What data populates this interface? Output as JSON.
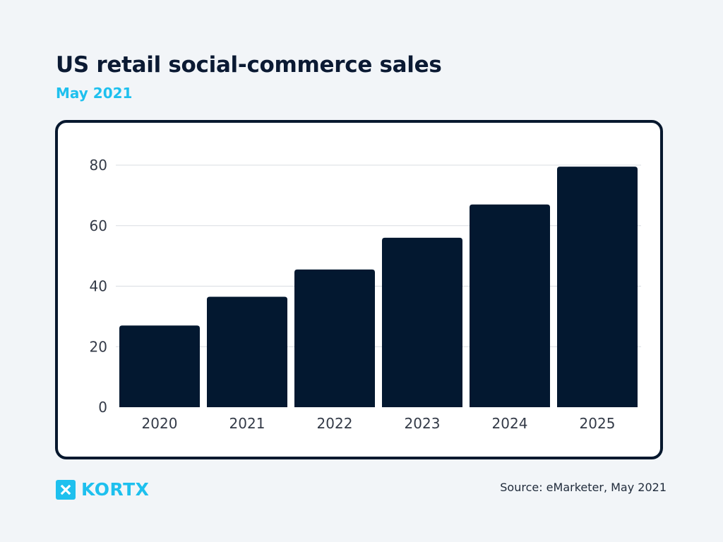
{
  "header": {
    "title": "US retail social-commerce sales",
    "subtitle": "May 2021"
  },
  "footer": {
    "brand": "KORTX",
    "source": "Source: eMarketer, May 2021"
  },
  "colors": {
    "bar": "#031830",
    "accent": "#1ec0ee",
    "grid": "#d9dde2"
  },
  "chart_data": {
    "type": "bar",
    "categories": [
      "2020",
      "2021",
      "2022",
      "2023",
      "2024",
      "2025"
    ],
    "values": [
      27,
      36.5,
      45.5,
      56,
      67,
      79.5
    ],
    "title": "US retail social-commerce sales",
    "subtitle": "May 2021",
    "xlabel": "",
    "ylabel": "",
    "ylim": [
      0,
      80
    ],
    "yticks": [
      0,
      20,
      40,
      60,
      80
    ],
    "grid": true,
    "legend": "none"
  }
}
